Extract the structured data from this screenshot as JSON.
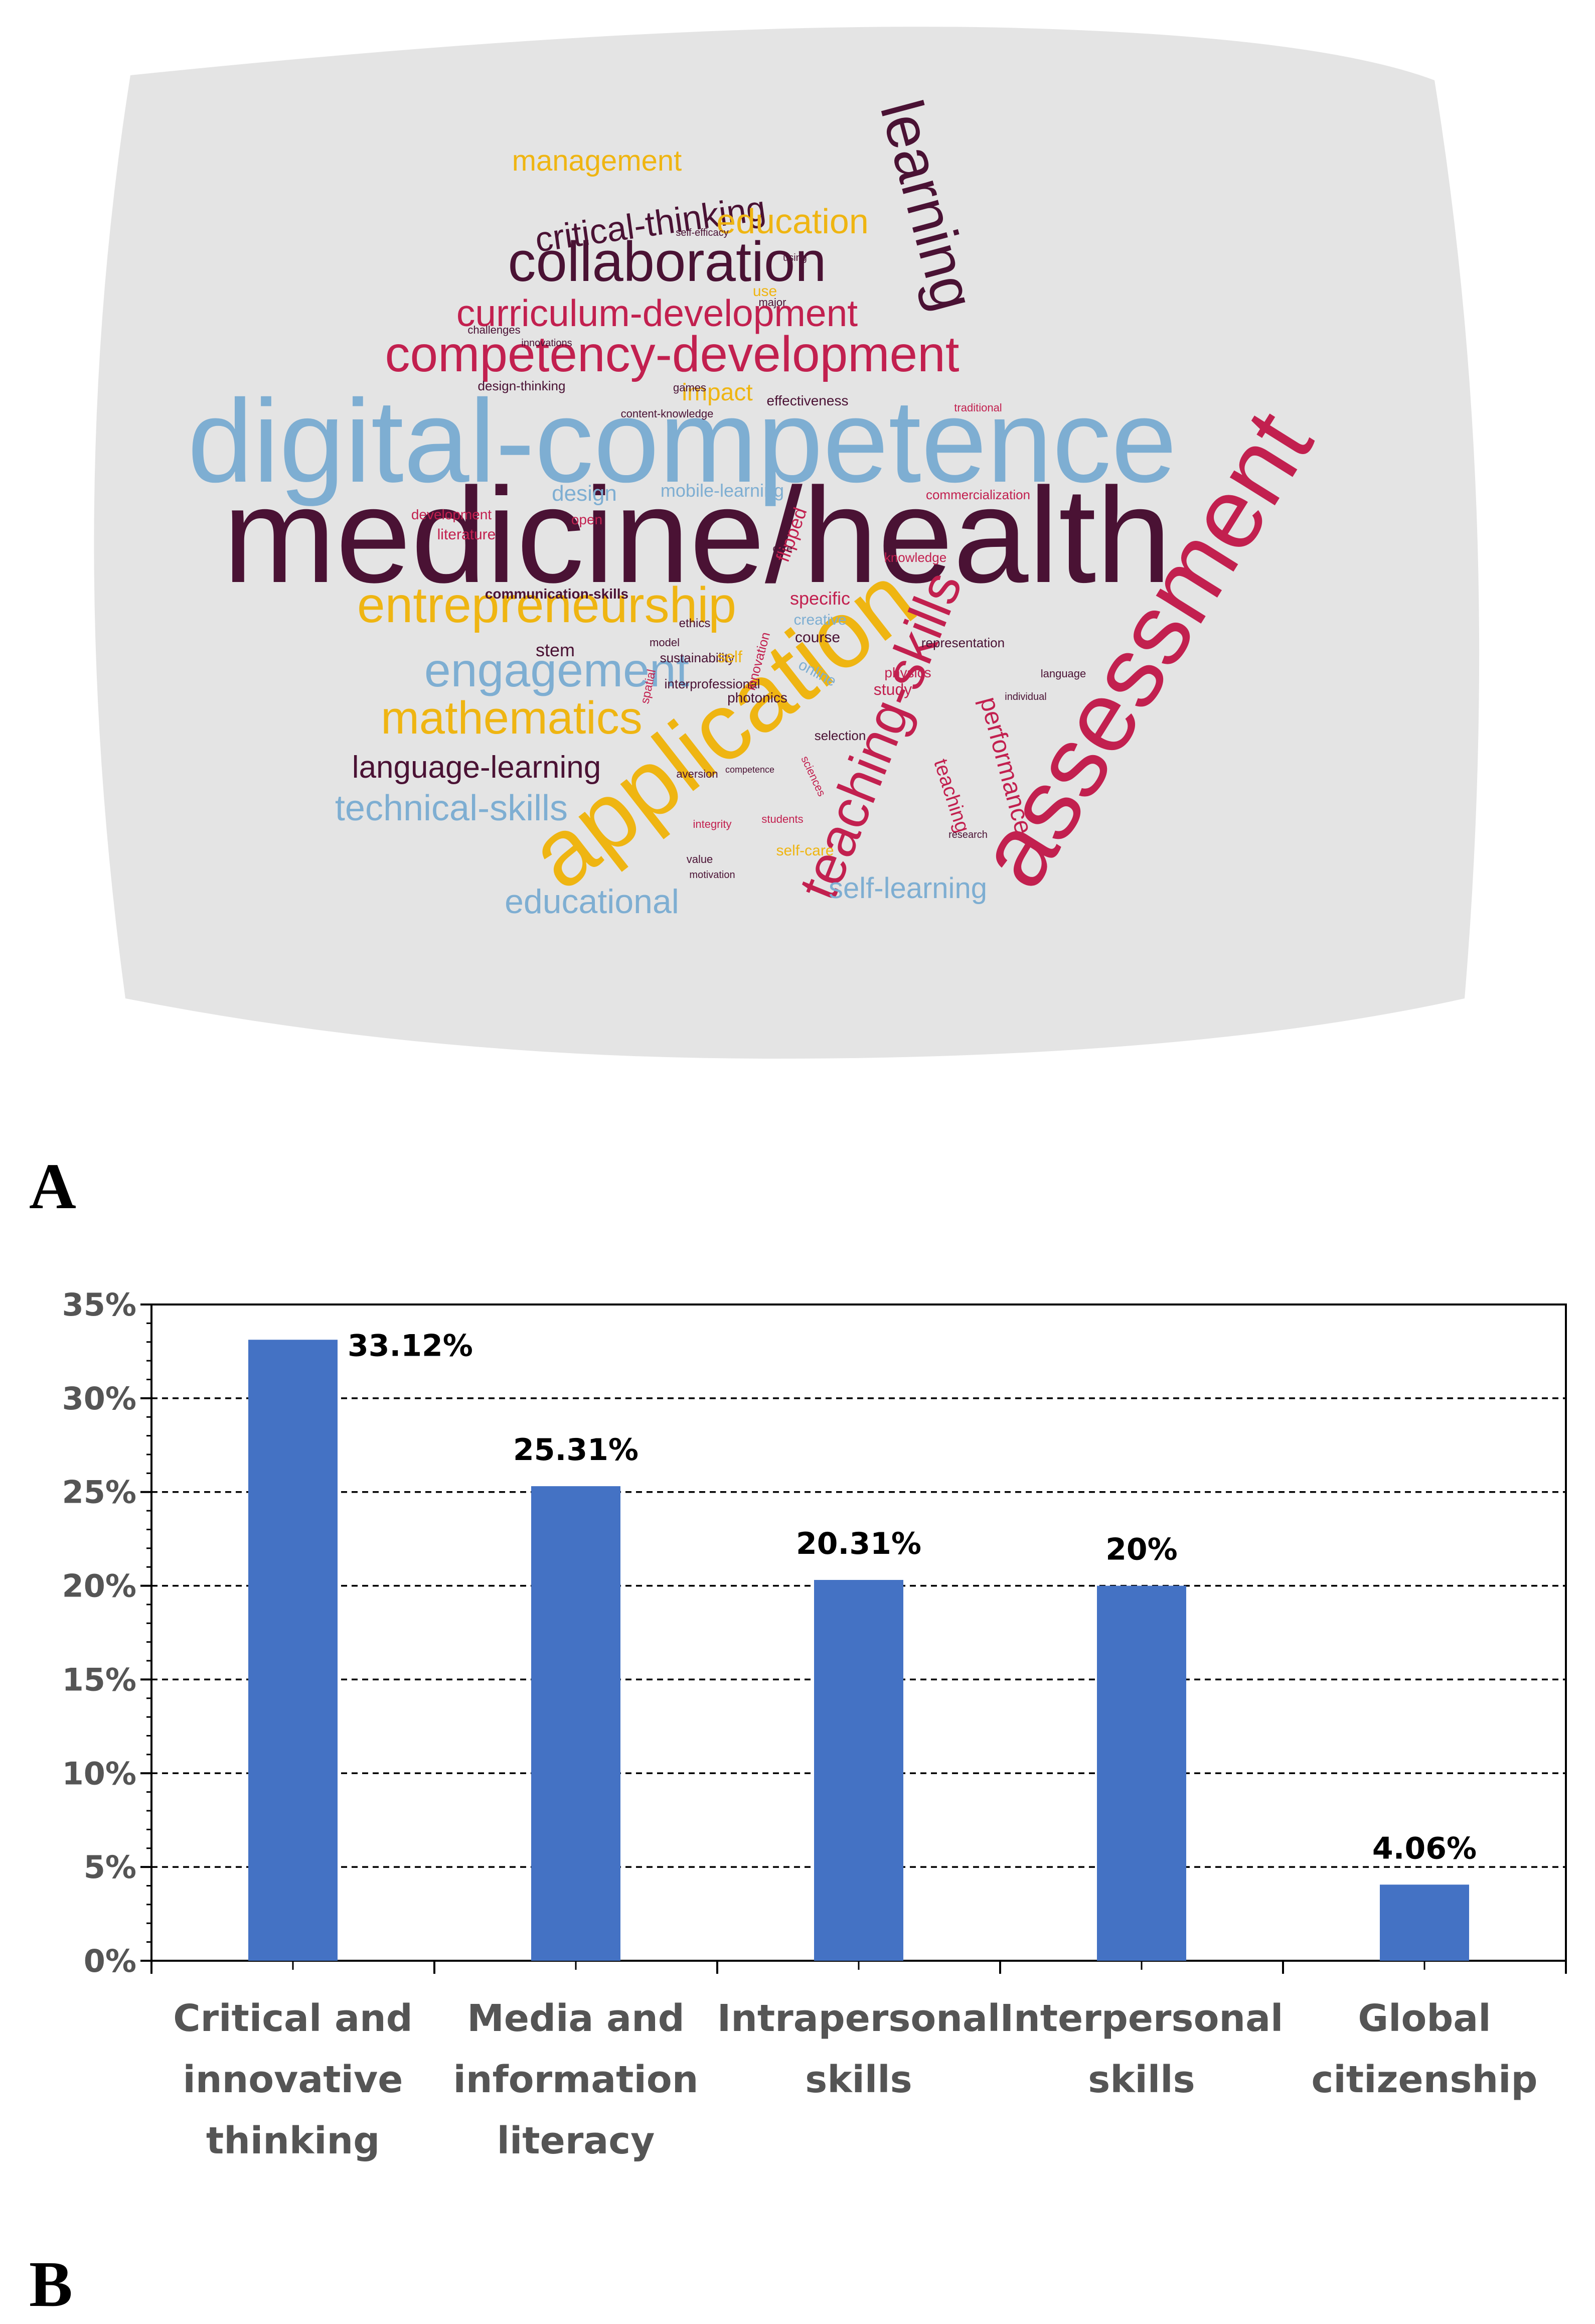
{
  "panel_labels": {
    "a": "A",
    "b": "B"
  },
  "word_cloud": {
    "background": "#e4e4e4",
    "palette": {
      "dark": "#4a1234",
      "blue": "#7eaed2",
      "red": "#c2204f",
      "gold": "#efb512",
      "navy": "#45507e"
    },
    "words": [
      {
        "text": "medicine/health",
        "color": "dark"
      },
      {
        "text": "digital-competence",
        "color": "blue"
      },
      {
        "text": "assessment",
        "color": "red"
      },
      {
        "text": "application",
        "color": "gold"
      },
      {
        "text": "learning",
        "color": "dark"
      },
      {
        "text": "teaching-skills",
        "color": "red"
      },
      {
        "text": "competency-development",
        "color": "red"
      },
      {
        "text": "collaboration",
        "color": "dark"
      },
      {
        "text": "entrepreneurship",
        "color": "gold"
      },
      {
        "text": "engagement",
        "color": "blue"
      },
      {
        "text": "mathematics",
        "color": "gold"
      },
      {
        "text": "curriculum-development",
        "color": "red"
      },
      {
        "text": "critical-thinking",
        "color": "dark"
      },
      {
        "text": "language-learning",
        "color": "dark"
      },
      {
        "text": "technical-skills",
        "color": "blue"
      },
      {
        "text": "educational",
        "color": "blue"
      },
      {
        "text": "education",
        "color": "gold"
      },
      {
        "text": "management",
        "color": "gold"
      },
      {
        "text": "self-learning",
        "color": "blue"
      },
      {
        "text": "performance",
        "color": "red"
      },
      {
        "text": "communication-skills",
        "color": "dark"
      },
      {
        "text": "stem",
        "color": "dark"
      },
      {
        "text": "sustainability",
        "color": "dark"
      },
      {
        "text": "specific",
        "color": "red"
      },
      {
        "text": "creative",
        "color": "blue"
      },
      {
        "text": "course",
        "color": "dark"
      },
      {
        "text": "teaching",
        "color": "red"
      },
      {
        "text": "design",
        "color": "blue"
      },
      {
        "text": "mobile-learning",
        "color": "blue"
      },
      {
        "text": "impact",
        "color": "gold"
      },
      {
        "text": "effectiveness",
        "color": "dark"
      },
      {
        "text": "commercialization",
        "color": "red"
      },
      {
        "text": "knowledge",
        "color": "red"
      },
      {
        "text": "design-thinking",
        "color": "dark"
      },
      {
        "text": "literature",
        "color": "red"
      },
      {
        "text": "study",
        "color": "red"
      },
      {
        "text": "physics",
        "color": "red"
      },
      {
        "text": "photonics",
        "color": "dark"
      },
      {
        "text": "online",
        "color": "blue"
      },
      {
        "text": "interprofessional",
        "color": "dark"
      },
      {
        "text": "selection",
        "color": "dark"
      },
      {
        "text": "self-care",
        "color": "gold"
      },
      {
        "text": "representation",
        "color": "dark"
      },
      {
        "text": "innovation",
        "color": "red"
      },
      {
        "text": "model",
        "color": "dark"
      },
      {
        "text": "self",
        "color": "gold"
      },
      {
        "text": "use",
        "color": "gold"
      },
      {
        "text": "open",
        "color": "red"
      },
      {
        "text": "value",
        "color": "dark"
      },
      {
        "text": "integrity",
        "color": "red"
      },
      {
        "text": "flipped",
        "color": "red"
      },
      {
        "text": "development",
        "color": "red"
      },
      {
        "text": "challenges",
        "color": "dark"
      },
      {
        "text": "content-knowledge",
        "color": "dark"
      },
      {
        "text": "games",
        "color": "dark"
      },
      {
        "text": "language",
        "color": "dark"
      },
      {
        "text": "research",
        "color": "dark"
      },
      {
        "text": "using",
        "color": "dark"
      },
      {
        "text": "major",
        "color": "dark"
      },
      {
        "text": "traditional",
        "color": "red"
      },
      {
        "text": "competence",
        "color": "dark"
      },
      {
        "text": "sciences",
        "color": "red"
      },
      {
        "text": "aversion",
        "color": "dark"
      },
      {
        "text": "spatial",
        "color": "red"
      },
      {
        "text": "care",
        "color": "dark"
      },
      {
        "text": "individual",
        "color": "dark"
      },
      {
        "text": "motivation",
        "color": "dark"
      },
      {
        "text": "students",
        "color": "red"
      },
      {
        "text": "ethics",
        "color": "dark"
      },
      {
        "text": "innovations",
        "color": "dark"
      },
      {
        "text": "self-efficacy",
        "color": "dark"
      }
    ]
  },
  "chart_data": {
    "type": "bar",
    "categories": [
      [
        "Critical and",
        "innovative",
        "thinking"
      ],
      [
        "Media and",
        "information",
        "literacy"
      ],
      [
        "Intrapersonal",
        "skills"
      ],
      [
        "Interpersonal",
        "skills"
      ],
      [
        "Global",
        "citizenship"
      ]
    ],
    "values": [
      33.12,
      25.31,
      20.31,
      20,
      4.06
    ],
    "data_labels": [
      "33.12%",
      "25.31%",
      "20.31%",
      "20%",
      "4.06%"
    ],
    "y_ticks": [
      "0%",
      "5%",
      "10%",
      "15%",
      "20%",
      "25%",
      "30%",
      "35%"
    ],
    "ylim": [
      0,
      35
    ],
    "grid": true,
    "bar_color": "#4472c4",
    "title": "",
    "xlabel": "",
    "ylabel": ""
  }
}
